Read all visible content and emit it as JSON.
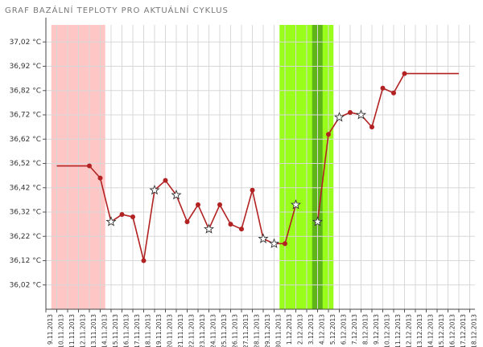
{
  "chart_data": {
    "type": "line",
    "title": "GRAF BAZÁLNÍ TEPLOTY PRO AKTUÁLNÍ CYKLUS",
    "categories": [
      "9.11.2013",
      "10.11.2013",
      "11.11.2013",
      "12.11.2013",
      "13.11.2013",
      "14.11.2013",
      "15.11.2013",
      "16.11.2013",
      "17.11.2013",
      "18.11.2013",
      "19.11.2013",
      "20.11.2013",
      "21.11.2013",
      "22.11.2013",
      "23.11.2013",
      "24.11.2013",
      "25.11.2013",
      "26.11.2013",
      "27.11.2013",
      "28.11.2013",
      "29.11.2013",
      "30.11.2013",
      "1.12.2013",
      "2.12.2013",
      "3.12.2013",
      "4.12.2013",
      "5.12.2013",
      "6.12.2013",
      "7.12.2013",
      "8.12.2013",
      "9.12.2013",
      "10.12.2013",
      "11.12.2013",
      "12.12.2013",
      "13.12.2013",
      "14.12.2013",
      "15.12.2013",
      "16.12.2013",
      "17.12.2013",
      "18.12.2013"
    ],
    "values": [
      null,
      36.51,
      36.51,
      36.51,
      36.51,
      36.46,
      36.28,
      36.31,
      36.3,
      36.12,
      36.41,
      36.45,
      36.39,
      36.28,
      36.35,
      36.25,
      36.35,
      36.27,
      36.25,
      36.41,
      36.21,
      36.19,
      36.19,
      36.35,
      null,
      36.28,
      36.64,
      36.71,
      36.73,
      36.72,
      36.67,
      36.83,
      36.81,
      36.89,
      36.89,
      36.89,
      36.89,
      36.89,
      36.89,
      null
    ],
    "markers": [
      null,
      null,
      null,
      null,
      "dot",
      "dot",
      "star",
      "dot",
      "dot",
      "dot",
      "star",
      "dot",
      "star",
      "dot",
      "dot",
      "star",
      "dot",
      "dot",
      "dot",
      "dot",
      "star",
      "star",
      "dot",
      "star",
      null,
      "star",
      "dot",
      "star",
      "dot",
      "star",
      "dot",
      "dot",
      "dot",
      "dot",
      null,
      null,
      null,
      null,
      null,
      null
    ],
    "color": "#b22222",
    "bands": [
      {
        "from": "10.11.2013",
        "to": "14.11.2013",
        "color": "#ffc6c6"
      },
      {
        "from": "1.12.2013",
        "to": "5.12.2013",
        "color": "#99ff1a"
      },
      {
        "from": "4.12.2013",
        "to": "4.12.2013",
        "color": "#5fb41a"
      }
    ],
    "ylim": [
      35.92,
      37.12
    ],
    "yticks": [
      {
        "value": 36.02,
        "label": "36,02 °C"
      },
      {
        "value": 36.12,
        "label": "36,12 °C"
      },
      {
        "value": 36.22,
        "label": "36,22 °C"
      },
      {
        "value": 36.32,
        "label": "36,32 °C"
      },
      {
        "value": 36.42,
        "label": "36,42 °C"
      },
      {
        "value": 36.52,
        "label": "36,52 °C"
      },
      {
        "value": 36.62,
        "label": "36,62 °C"
      },
      {
        "value": 36.72,
        "label": "36,72 °C"
      },
      {
        "value": 36.82,
        "label": "36,82 °C"
      },
      {
        "value": 36.92,
        "label": "36,92 °C"
      },
      {
        "value": 37.02,
        "label": "37,02 °C"
      }
    ],
    "grid": true
  }
}
